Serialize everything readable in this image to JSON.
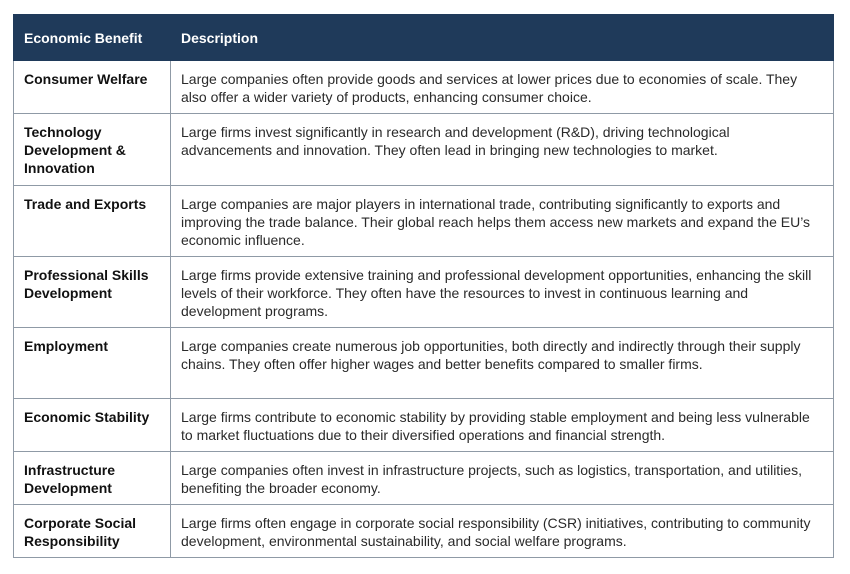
{
  "table": {
    "header": [
      "Economic Benefit",
      "Description"
    ],
    "rows": [
      [
        "Consumer Welfare",
        "Large companies often provide goods and services at lower prices due to economies of scale. They also offer a wider variety of products, enhancing consumer choice."
      ],
      [
        "Technology Development & Innovation",
        "Large firms invest significantly in research and development (R&D), driving technological advancements and innovation. They often lead in bringing new technologies to market."
      ],
      [
        "Trade and Exports",
        "Large companies are major players in international trade, contributing significantly to exports and improving the trade balance. Their global reach helps them access new markets and expand the EU’s economic influence."
      ],
      [
        "Professional Skills Development",
        "Large firms provide extensive training and professional development opportunities, enhancing the skill levels of their workforce. They often have the resources to invest in continuous learning and development programs."
      ],
      [
        "Employment",
        "Large companies create numerous job opportunities, both directly and indirectly through their supply chains. They often offer higher wages and better benefits compared to smaller firms."
      ],
      [
        "Economic Stability",
        "Large firms contribute to economic stability by providing stable employment and being less vulnerable to market fluctuations due to their diversified operations and financial strength."
      ],
      [
        "Infrastructure Development",
        "Large companies often invest in infrastructure projects, such as logistics, transportation, and utilities, benefiting the broader economy."
      ],
      [
        "Corporate Social Responsibility",
        "Large firms often engage in corporate social responsibility (CSR) initiatives, contributing to community development, environmental sustainability, and social welfare programs."
      ]
    ]
  }
}
